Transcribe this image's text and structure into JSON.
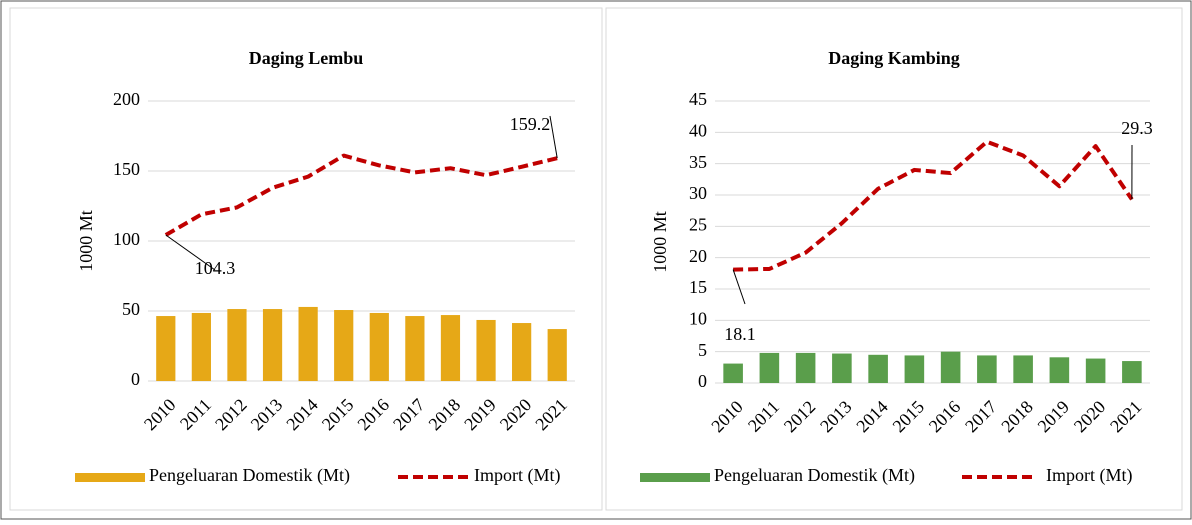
{
  "chart_data": [
    {
      "type": "bar",
      "title": "Daging Lembu",
      "y_label": "1000 Mt",
      "categories": [
        "2010",
        "2011",
        "2012",
        "2013",
        "2014",
        "2015",
        "2016",
        "2017",
        "2018",
        "2019",
        "2020",
        "2021"
      ],
      "ylim": [
        0,
        200
      ],
      "yticks": [
        0,
        50,
        100,
        150,
        200
      ],
      "grid": true,
      "series": [
        {
          "name": "Pengeluaran Domestik (Mt)",
          "color": "#e6a817",
          "type": "bar",
          "values": [
            46.4,
            48.6,
            51.4,
            51.4,
            52.9,
            50.7,
            48.6,
            46.4,
            47.1,
            43.6,
            41.4,
            37.1
          ]
        },
        {
          "name": "Import (Mt)",
          "color": "#c00000",
          "type": "line",
          "values": [
            104.3,
            119,
            124,
            138,
            146,
            161,
            154,
            149,
            152,
            147,
            153,
            159.2
          ],
          "value_labels": [
            "104.3",
            null,
            null,
            null,
            null,
            null,
            null,
            null,
            null,
            null,
            null,
            "159.2"
          ]
        }
      ]
    },
    {
      "type": "bar",
      "title": "Daging Kambing",
      "y_label": "1000 Mt",
      "categories": [
        "2010",
        "2011",
        "2012",
        "2013",
        "2014",
        "2015",
        "2016",
        "2017",
        "2018",
        "2019",
        "2020",
        "2021"
      ],
      "ylim": [
        0,
        45
      ],
      "yticks": [
        0,
        5,
        10,
        15,
        20,
        25,
        30,
        35,
        40,
        45
      ],
      "grid": true,
      "series": [
        {
          "name": "Pengeluaran Domestik (Mt)",
          "color": "#5a9e4b",
          "type": "bar",
          "values": [
            3.1,
            4.8,
            4.8,
            4.7,
            4.5,
            4.4,
            5.0,
            4.4,
            4.4,
            4.1,
            3.9,
            3.5
          ]
        },
        {
          "name": "Import (Mt)",
          "color": "#c00000",
          "type": "line",
          "values": [
            18.1,
            18.2,
            20.8,
            25.5,
            31,
            34,
            33.5,
            38.5,
            36.3,
            31.4,
            37.8,
            29.3
          ],
          "value_labels": [
            "18.1",
            null,
            null,
            null,
            null,
            null,
            null,
            null,
            null,
            null,
            null,
            "29.3"
          ]
        }
      ]
    }
  ]
}
